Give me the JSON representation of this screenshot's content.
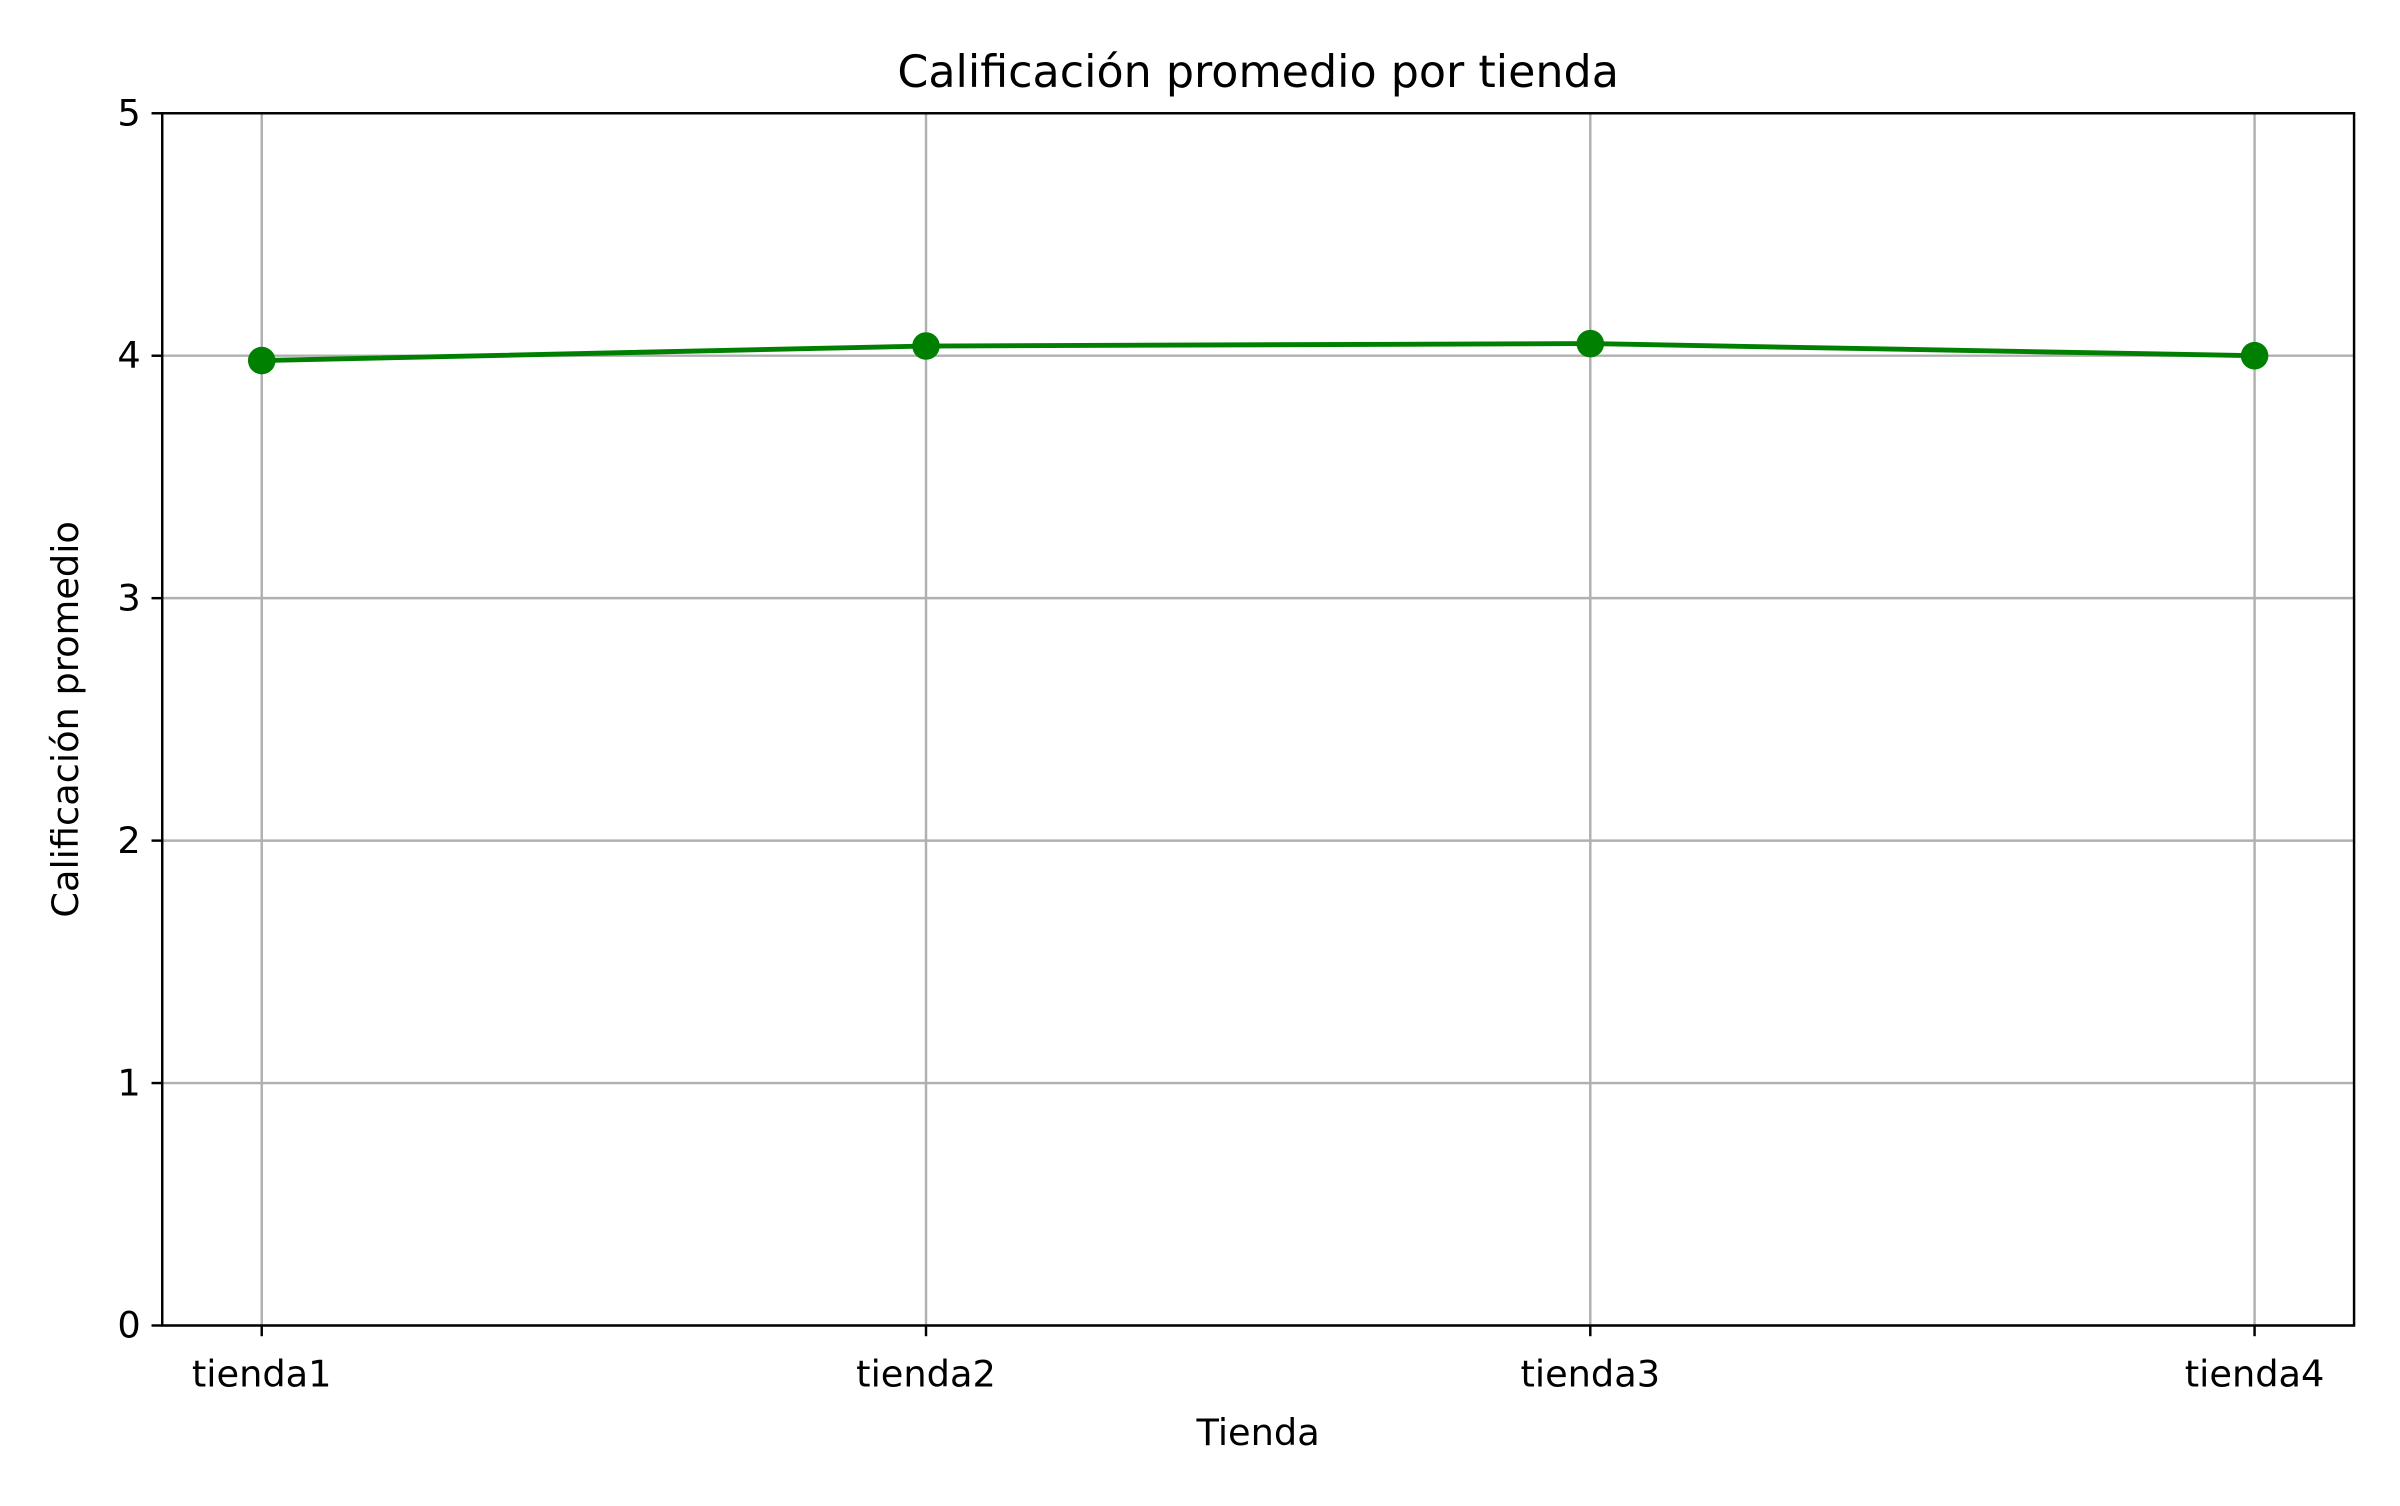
{
  "chart_data": {
    "type": "line",
    "title": "Calificación promedio por tienda",
    "xlabel": "Tienda",
    "ylabel": "Calificación promedio",
    "categories": [
      "tienda1",
      "tienda2",
      "tienda3",
      "tienda4"
    ],
    "series": [
      {
        "values": [
          3.98,
          4.04,
          4.05,
          4.0
        ],
        "color": "#008000",
        "marker": "circle"
      }
    ],
    "ylim": [
      0,
      5
    ],
    "yticks": [
      "0",
      "1",
      "2",
      "3",
      "4",
      "5"
    ],
    "grid": true,
    "legend": "none"
  }
}
